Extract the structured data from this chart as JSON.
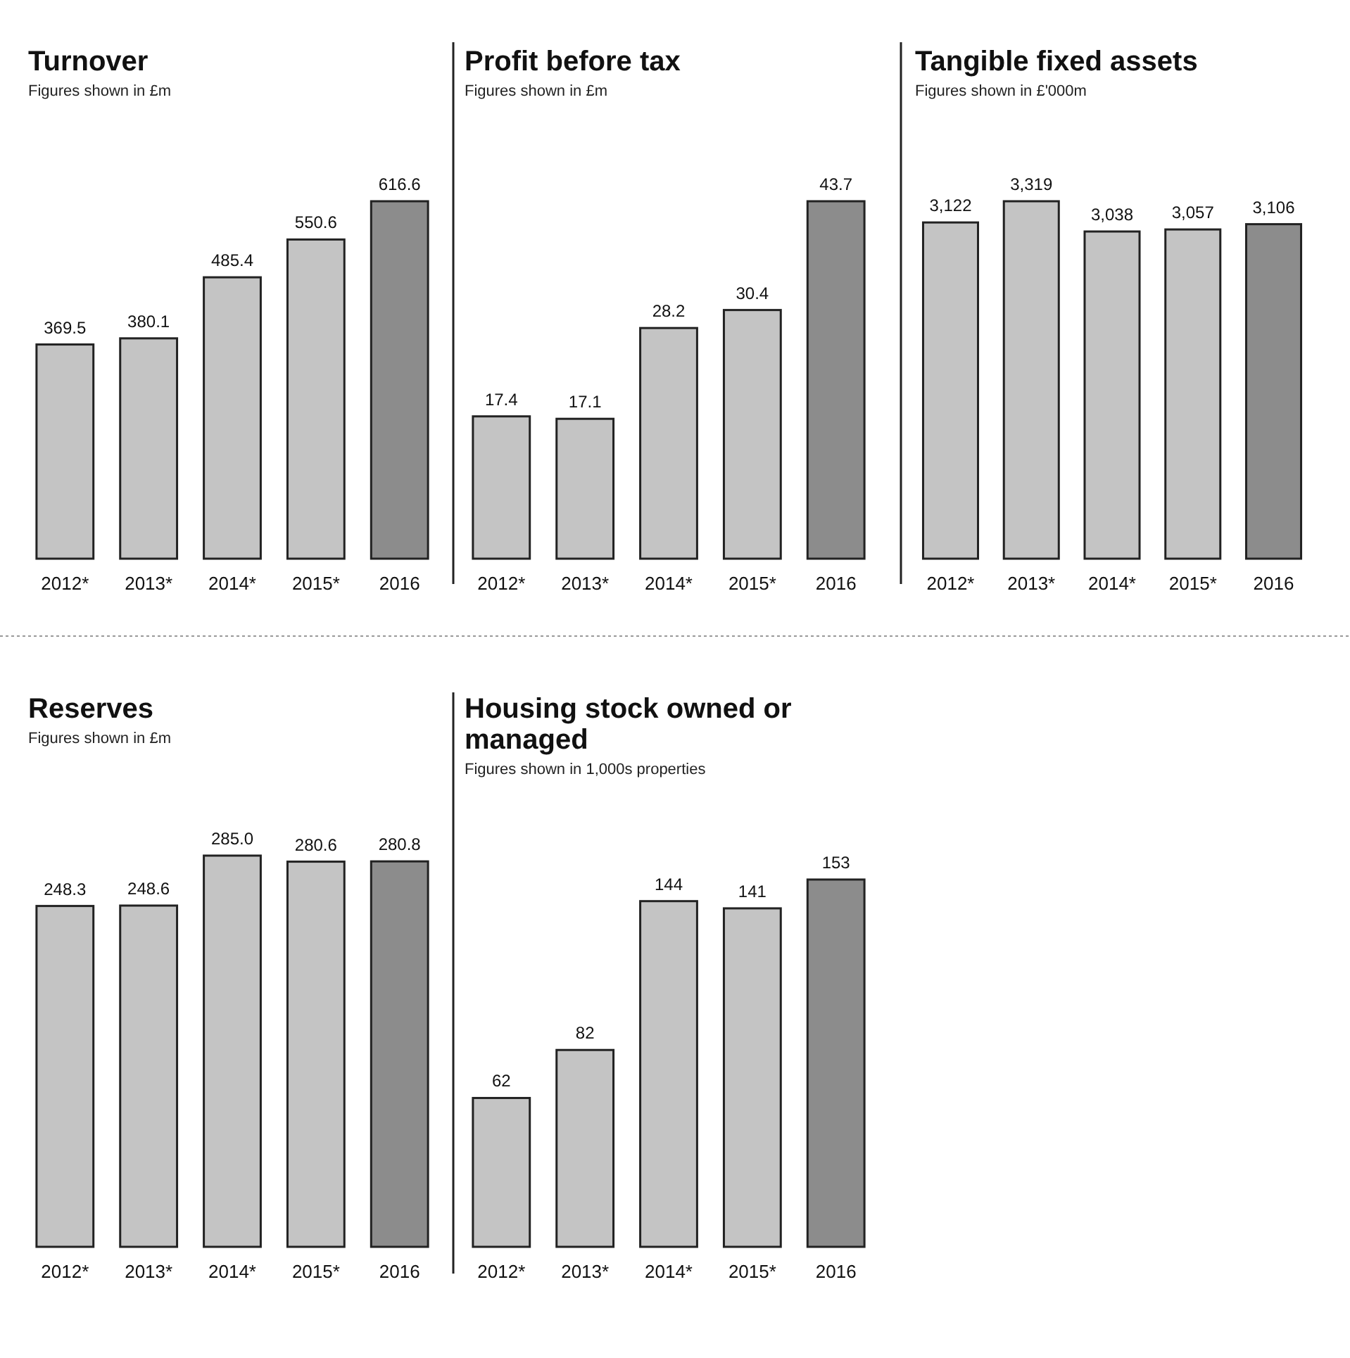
{
  "chart_data": [
    {
      "type": "bar",
      "title": "Turnover",
      "subtitle": "Figures shown in £m",
      "categories": [
        "2012*",
        "2013*",
        "2014*",
        "2015*",
        "2016"
      ],
      "values": [
        369.5,
        380.1,
        485.4,
        550.6,
        616.6
      ],
      "colors": [
        "#c4c4c4",
        "#c4c4c4",
        "#c4c4c4",
        "#c4c4c4",
        "#8c8c8c"
      ],
      "data_labels": true
    },
    {
      "type": "bar",
      "title": "Profit before tax",
      "subtitle": "Figures shown in £m",
      "categories": [
        "2012*",
        "2013*",
        "2014*",
        "2015*",
        "2016"
      ],
      "values": [
        17.4,
        17.1,
        28.2,
        30.4,
        43.7
      ],
      "colors": [
        "#c4c4c4",
        "#c4c4c4",
        "#c4c4c4",
        "#c4c4c4",
        "#8c8c8c"
      ],
      "data_labels": true
    },
    {
      "type": "bar",
      "title": "Tangible fixed assets",
      "subtitle": "Figures shown in £'000m",
      "categories": [
        "2012*",
        "2013*",
        "2014*",
        "2015*",
        "2016"
      ],
      "values": [
        3122,
        3319,
        3038,
        3057,
        3106
      ],
      "value_labels": [
        "3,122",
        "3,319",
        "3,038",
        "3,057",
        "3,106"
      ],
      "colors": [
        "#c4c4c4",
        "#c4c4c4",
        "#c4c4c4",
        "#c4c4c4",
        "#8c8c8c"
      ]
    },
    {
      "type": "bar",
      "title": "Reserves",
      "subtitle": "Figures shown in £m",
      "categories": [
        "2012*",
        "2013*",
        "2014*",
        "2015*",
        "2016"
      ],
      "values": [
        248.3,
        248.6,
        285.0,
        280.6,
        280.8
      ],
      "value_labels": [
        "248.3",
        "248.6",
        "285.0",
        "280.6",
        "280.8"
      ],
      "colors": [
        "#c4c4c4",
        "#c4c4c4",
        "#c4c4c4",
        "#c4c4c4",
        "#8c8c8c"
      ]
    },
    {
      "type": "bar",
      "title": "Housing stock owned or managed",
      "subtitle": "Figures shown in 1,000s properties",
      "categories": [
        "2012*",
        "2013*",
        "2014*",
        "2015*",
        "2016"
      ],
      "values": [
        62,
        82,
        144,
        141,
        153
      ],
      "colors": [
        "#c4c4c4",
        "#c4c4c4",
        "#c4c4c4",
        "#c4c4c4",
        "#8c8c8c"
      ],
      "data_labels": true
    }
  ]
}
